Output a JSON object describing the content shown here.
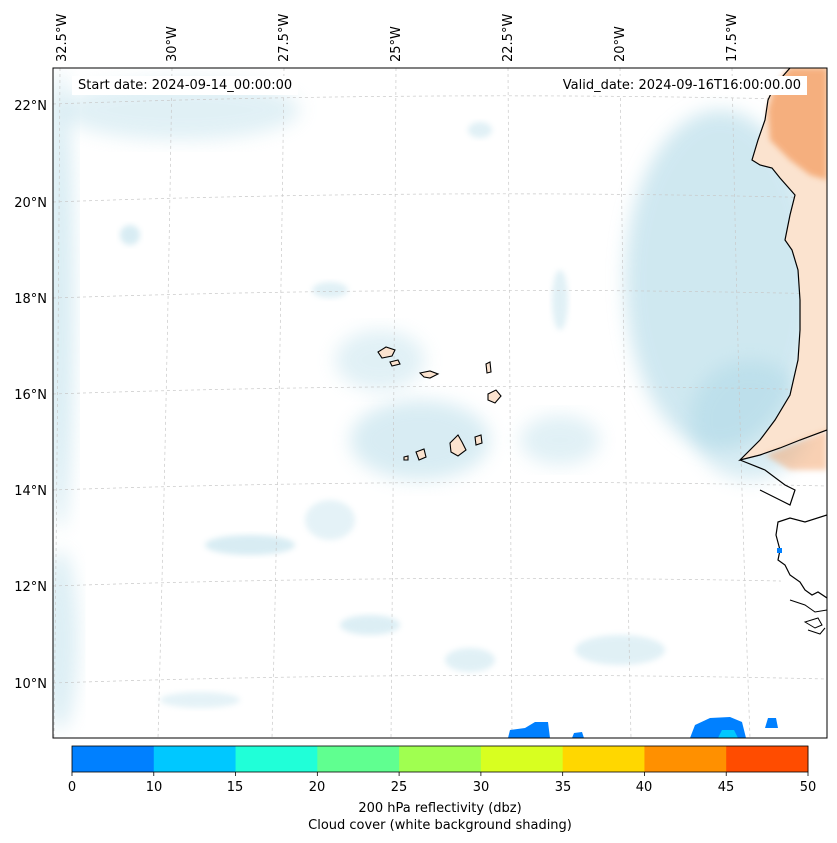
{
  "header": {
    "start_label": "Start date:",
    "start_value": "2024-09-14_00:00:00",
    "valid_label": "Valid_date:",
    "valid_value": "2024-09-16T16:00:00.00"
  },
  "map": {
    "lon_labels": [
      "32.5°W",
      "30°W",
      "27.5°W",
      "25°W",
      "22.5°W",
      "20°W",
      "17.5°W"
    ],
    "lat_labels": [
      "22°N",
      "20°N",
      "18°N",
      "16°N",
      "14°N",
      "12°N",
      "10°N"
    ],
    "land_color": "#fbe3cf",
    "ocean_color": "#ffffff",
    "cloud_color": "#a9d6e5",
    "dry_air_color": "#f4a36b"
  },
  "colorbar": {
    "ticks": [
      "0",
      "10",
      "15",
      "20",
      "25",
      "30",
      "35",
      "40",
      "45",
      "50"
    ],
    "colors": [
      "#0080ff",
      "#00c8ff",
      "#20ffd8",
      "#60ff90",
      "#a0ff50",
      "#d8ff20",
      "#ffd700",
      "#ff9000",
      "#ff4c00"
    ],
    "label": "200 hPa reflectivity (dbz)",
    "sublabel": "Cloud cover (white background shading)"
  }
}
